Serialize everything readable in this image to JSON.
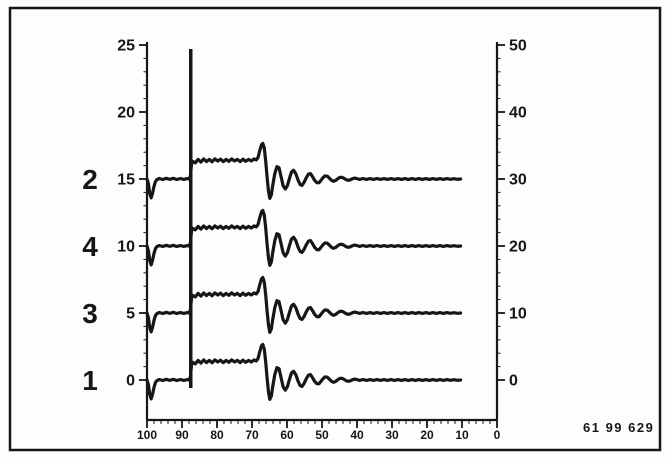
{
  "figure": {
    "code_label": "61 99 629",
    "ink_color": "#161616",
    "paper_color": "#fdfdfc"
  },
  "chart_data": {
    "type": "line",
    "title": "",
    "description": "Scanned strip-chart recording: four stacked recorder traces (labeled 2, 4, 3, 1) sharing a vertical event/injection marker line near x=87, each showing an elevated noisy plateau, a sharp peak near x=66 and a damped oscillation decaying to baseline",
    "grid": false,
    "legend": false,
    "x_axis": {
      "ticks": [
        100,
        90,
        80,
        70,
        60,
        50,
        40,
        30,
        20,
        10,
        0
      ],
      "range": [
        100,
        0
      ],
      "reversed": true,
      "minor_tick_step": 2,
      "label": ""
    },
    "y_axis_left": {
      "ticks": [
        25,
        20,
        15,
        10,
        5,
        0
      ],
      "range": [
        -3,
        25
      ],
      "minor_tick_step": 1,
      "label": ""
    },
    "y_axis_right": {
      "ticks": [
        50,
        40,
        30,
        20,
        10,
        0
      ],
      "range": [
        -6,
        50
      ],
      "minor_tick_step": 2,
      "label": ""
    },
    "marker_line": {
      "x": 87.5,
      "from": 24.7,
      "to": -0.6
    },
    "traces": [
      {
        "label": "2",
        "baseline_left_axis": 15
      },
      {
        "label": "4",
        "baseline_left_axis": 10
      },
      {
        "label": "3",
        "baseline_left_axis": 5
      },
      {
        "label": "1",
        "baseline_left_axis": 0
      }
    ],
    "waveform_dx_dy": [
      [
        100,
        0
      ],
      [
        99.6,
        -0.35
      ],
      [
        99.2,
        -1.1
      ],
      [
        98.8,
        -1.4
      ],
      [
        98.4,
        -1.05
      ],
      [
        98,
        -0.55
      ],
      [
        97.6,
        -0.2
      ],
      [
        97.2,
        -0.05
      ],
      [
        96.5,
        0.04
      ],
      [
        95.5,
        -0.04
      ],
      [
        94.5,
        0.05
      ],
      [
        93.5,
        -0.03
      ],
      [
        92.5,
        0.05
      ],
      [
        91.5,
        -0.04
      ],
      [
        90.5,
        0.04
      ],
      [
        89.5,
        -0.03
      ],
      [
        88.5,
        0.03
      ],
      [
        87.9,
        0
      ],
      [
        87.6,
        0.25
      ],
      [
        87.3,
        1.1
      ],
      [
        87,
        1.32
      ],
      [
        86.2,
        1.2
      ],
      [
        85.4,
        1.46
      ],
      [
        84.6,
        1.26
      ],
      [
        83.8,
        1.5
      ],
      [
        83,
        1.3
      ],
      [
        82.2,
        1.46
      ],
      [
        81.4,
        1.28
      ],
      [
        80.6,
        1.5
      ],
      [
        79.8,
        1.34
      ],
      [
        79,
        1.48
      ],
      [
        78.2,
        1.3
      ],
      [
        77.4,
        1.46
      ],
      [
        76.6,
        1.32
      ],
      [
        75.8,
        1.5
      ],
      [
        75,
        1.34
      ],
      [
        74.2,
        1.46
      ],
      [
        73.4,
        1.3
      ],
      [
        72.6,
        1.48
      ],
      [
        71.8,
        1.32
      ],
      [
        71,
        1.46
      ],
      [
        70.2,
        1.34
      ],
      [
        69.4,
        1.5
      ],
      [
        68.8,
        1.42
      ],
      [
        68.3,
        1.6
      ],
      [
        67.8,
        2.1
      ],
      [
        67.3,
        2.55
      ],
      [
        66.9,
        2.65
      ],
      [
        66.5,
        2.3
      ],
      [
        66.1,
        1.35
      ],
      [
        65.7,
        0.2
      ],
      [
        65.3,
        -0.9
      ],
      [
        64.9,
        -1.45
      ],
      [
        64.5,
        -1.2
      ],
      [
        64.1,
        -0.5
      ],
      [
        63.5,
        0.4
      ],
      [
        62.9,
        0.92
      ],
      [
        62.3,
        0.85
      ],
      [
        61.7,
        0.2
      ],
      [
        61.1,
        -0.5
      ],
      [
        60.5,
        -0.75
      ],
      [
        59.9,
        -0.5
      ],
      [
        59.3,
        0.05
      ],
      [
        58.7,
        0.52
      ],
      [
        58.1,
        0.65
      ],
      [
        57.5,
        0.4
      ],
      [
        56.9,
        -0.05
      ],
      [
        56.3,
        -0.4
      ],
      [
        55.7,
        -0.48
      ],
      [
        55.1,
        -0.25
      ],
      [
        54.5,
        0.1
      ],
      [
        53.9,
        0.36
      ],
      [
        53.3,
        0.4
      ],
      [
        52.7,
        0.18
      ],
      [
        52.1,
        -0.1
      ],
      [
        51.5,
        -0.27
      ],
      [
        50.9,
        -0.28
      ],
      [
        50.3,
        -0.1
      ],
      [
        49.7,
        0.1
      ],
      [
        49.1,
        0.23
      ],
      [
        48.5,
        0.21
      ],
      [
        47.9,
        0.06
      ],
      [
        47.3,
        -0.1
      ],
      [
        46.7,
        -0.17
      ],
      [
        46.1,
        -0.11
      ],
      [
        45.5,
        0.02
      ],
      [
        44.9,
        0.12
      ],
      [
        44.3,
        0.13
      ],
      [
        43.7,
        0.05
      ],
      [
        43.1,
        -0.05
      ],
      [
        42.5,
        -0.1
      ],
      [
        41.9,
        -0.06
      ],
      [
        41.3,
        0.02
      ],
      [
        40.7,
        0.07
      ],
      [
        40.1,
        0.04
      ],
      [
        39.3,
        -0.03
      ],
      [
        38.3,
        0.04
      ],
      [
        37.3,
        -0.03
      ],
      [
        36.3,
        0.03
      ],
      [
        35.3,
        -0.03
      ],
      [
        34.3,
        0.04
      ],
      [
        33.3,
        -0.03
      ],
      [
        32.3,
        0.03
      ],
      [
        31.3,
        -0.03
      ],
      [
        30.3,
        0.03
      ],
      [
        29.3,
        -0.03
      ],
      [
        28.3,
        0.03
      ],
      [
        27.3,
        -0.03
      ],
      [
        26.3,
        0.03
      ],
      [
        25.3,
        -0.03
      ],
      [
        24.3,
        0.03
      ],
      [
        23.3,
        -0.03
      ],
      [
        22.3,
        0.03
      ],
      [
        21.3,
        -0.03
      ],
      [
        20.3,
        0.03
      ],
      [
        19.3,
        -0.03
      ],
      [
        18.3,
        0.03
      ],
      [
        17.3,
        -0.03
      ],
      [
        16.3,
        0.03
      ],
      [
        15.3,
        -0.03
      ],
      [
        14.3,
        0.03
      ],
      [
        13.3,
        -0.02
      ],
      [
        12.3,
        0.02
      ],
      [
        11.3,
        -0.02
      ],
      [
        10.4,
        0
      ]
    ]
  }
}
